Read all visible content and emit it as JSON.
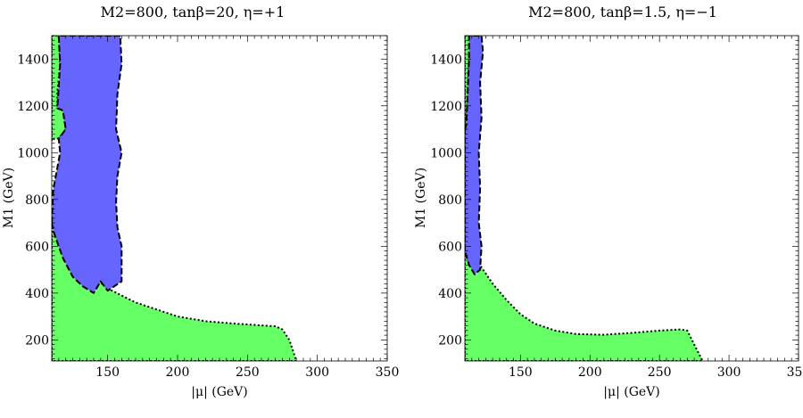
{
  "colors": {
    "green_region": "#66ff66",
    "green_edge": "#3aa83a",
    "blue_region": "#6666ff",
    "frame": "#000000"
  },
  "chart_data": [
    {
      "type": "area",
      "title": "M2=800, tanβ=20, η=+1",
      "xlabel": "|μ| (GeV)",
      "ylabel": "M1 (GeV)",
      "xlim": [
        110,
        350
      ],
      "ylim": [
        110,
        1500
      ],
      "xticks": [
        150,
        200,
        250,
        300,
        350
      ],
      "yticks": [
        200,
        400,
        600,
        800,
        1000,
        1200,
        1400
      ],
      "regions": [
        {
          "fill": "green",
          "boundary": "dotted",
          "points": [
            [
              110,
              110
            ],
            [
              110,
              670
            ],
            [
              115,
              630
            ],
            [
              122,
              570
            ],
            [
              130,
              510
            ],
            [
              140,
              470
            ],
            [
              150,
              420
            ],
            [
              160,
              390
            ],
            [
              170,
              360
            ],
            [
              185,
              330
            ],
            [
              200,
              300
            ],
            [
              220,
              280
            ],
            [
              240,
              270
            ],
            [
              260,
              262
            ],
            [
              270,
              258
            ],
            [
              275,
              245
            ],
            [
              280,
              200
            ],
            [
              285,
              110
            ]
          ]
        },
        {
          "fill": "green",
          "boundary": "dotted",
          "points": [
            [
              110,
              1500
            ],
            [
              115,
              1500
            ],
            [
              116,
              1380
            ],
            [
              114,
              1260
            ],
            [
              114,
              1190
            ],
            [
              118,
              1180
            ],
            [
              120,
              1100
            ],
            [
              115,
              1060
            ],
            [
              112,
              1060
            ],
            [
              110,
              1050
            ]
          ]
        },
        {
          "fill": "blue",
          "boundary": "dashed",
          "points": [
            [
              110,
              700
            ],
            [
              111,
              840
            ],
            [
              116,
              1000
            ],
            [
              115,
              1060
            ],
            [
              120,
              1100
            ],
            [
              118,
              1180
            ],
            [
              114,
              1190
            ],
            [
              116,
              1380
            ],
            [
              115,
              1500
            ],
            [
              159,
              1500
            ],
            [
              160,
              1380
            ],
            [
              157,
              1250
            ],
            [
              156,
              1100
            ],
            [
              160,
              1000
            ],
            [
              157,
              900
            ],
            [
              156,
              790
            ],
            [
              157,
              680
            ],
            [
              160,
              600
            ],
            [
              160,
              450
            ],
            [
              150,
              410
            ],
            [
              145,
              450
            ],
            [
              140,
              400
            ],
            [
              132,
              430
            ],
            [
              125,
              470
            ],
            [
              118,
              550
            ],
            [
              112,
              650
            ]
          ]
        }
      ]
    },
    {
      "type": "area",
      "title": "M2=800, tanβ=1.5, η=−1",
      "xlabel": "|μ| (GeV)",
      "ylabel": "M1 (GeV)",
      "xlim": [
        110,
        350
      ],
      "ylim": [
        110,
        1500
      ],
      "xticks": [
        150,
        200,
        250,
        300,
        350
      ],
      "yticks": [
        200,
        400,
        600,
        800,
        1000,
        1200,
        1400
      ],
      "regions": [
        {
          "fill": "green",
          "boundary": "dotted",
          "points": [
            [
              110,
              110
            ],
            [
              110,
              600
            ],
            [
              116,
              560
            ],
            [
              122,
              510
            ],
            [
              130,
              440
            ],
            [
              140,
              370
            ],
            [
              150,
              310
            ],
            [
              160,
              270
            ],
            [
              175,
              240
            ],
            [
              190,
              225
            ],
            [
              210,
              222
            ],
            [
              230,
              230
            ],
            [
              250,
              240
            ],
            [
              265,
              245
            ],
            [
              270,
              240
            ],
            [
              275,
              180
            ],
            [
              281,
              110
            ]
          ]
        },
        {
          "fill": "green",
          "boundary": "dotted",
          "points": [
            [
              110,
              1500
            ],
            [
              113,
              1500
            ],
            [
              113,
              1400
            ],
            [
              112,
              1250
            ],
            [
              111,
              1120
            ],
            [
              110,
              1100
            ]
          ]
        },
        {
          "fill": "blue",
          "boundary": "dashed",
          "points": [
            [
              110,
              1100
            ],
            [
              111,
              1120
            ],
            [
              112,
              1250
            ],
            [
              113,
              1400
            ],
            [
              113,
              1500
            ],
            [
              122,
              1500
            ],
            [
              123,
              1430
            ],
            [
              121,
              1300
            ],
            [
              122,
              1150
            ],
            [
              120,
              1000
            ],
            [
              121,
              850
            ],
            [
              120,
              700
            ],
            [
              122,
              600
            ],
            [
              121,
              500
            ],
            [
              117,
              480
            ],
            [
              113,
              520
            ],
            [
              110,
              580
            ]
          ]
        }
      ]
    }
  ]
}
